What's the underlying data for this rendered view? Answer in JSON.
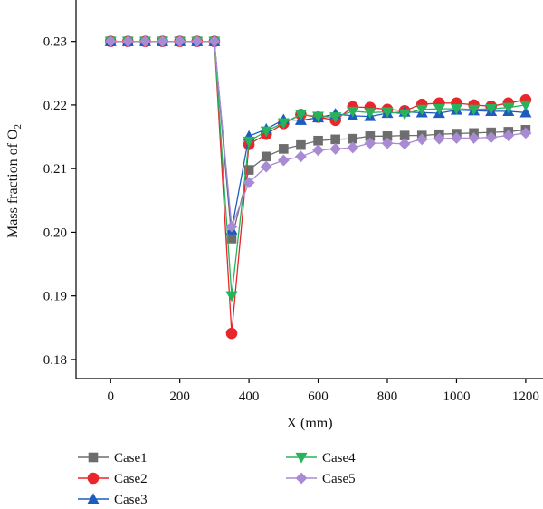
{
  "chart_data": {
    "type": "line",
    "xlabel": "X (mm)",
    "ylabel": "Mass fraction of O",
    "ylabel_subscript": "2",
    "xlim": [
      -100,
      1250
    ],
    "ylim": [
      0.177,
      0.2365
    ],
    "xticks": [
      0,
      200,
      400,
      600,
      800,
      1000,
      1200
    ],
    "yticks": [
      0.18,
      0.19,
      0.2,
      0.21,
      0.22,
      0.23
    ],
    "ytick_labels": [
      "0.18",
      "0.19",
      "0.20",
      "0.21",
      "0.22",
      "0.23"
    ],
    "grid": false,
    "legend_position": "bottom",
    "x": [
      0,
      50,
      100,
      150,
      200,
      250,
      300,
      350,
      400,
      450,
      500,
      550,
      600,
      650,
      700,
      750,
      800,
      850,
      900,
      950,
      1000,
      1050,
      1100,
      1150,
      1200
    ],
    "series": [
      {
        "name": "Case1",
        "color": "#6d6d6d",
        "marker": "square",
        "values": [
          0.23,
          0.23,
          0.23,
          0.23,
          0.23,
          0.23,
          0.23,
          0.199,
          0.2098,
          0.2119,
          0.2131,
          0.2137,
          0.2144,
          0.2146,
          0.2147,
          0.2151,
          0.2151,
          0.2152,
          0.2152,
          0.2154,
          0.2155,
          0.2156,
          0.2157,
          0.2158,
          0.2161
        ]
      },
      {
        "name": "Case2",
        "color": "#e8262b",
        "marker": "circle",
        "values": [
          0.23,
          0.23,
          0.23,
          0.23,
          0.23,
          0.23,
          0.23,
          0.1841,
          0.2138,
          0.2154,
          0.2171,
          0.2185,
          0.2181,
          0.2176,
          0.2197,
          0.2196,
          0.2193,
          0.2191,
          0.2201,
          0.2203,
          0.2203,
          0.22,
          0.2198,
          0.2203,
          0.2208
        ]
      },
      {
        "name": "Case3",
        "color": "#1e5bbf",
        "marker": "triangle-up",
        "values": [
          0.23,
          0.23,
          0.23,
          0.23,
          0.23,
          0.23,
          0.23,
          0.2004,
          0.2151,
          0.2162,
          0.2177,
          0.2176,
          0.218,
          0.2186,
          0.2183,
          0.2182,
          0.2187,
          0.2189,
          0.2188,
          0.2187,
          0.2192,
          0.2191,
          0.219,
          0.219,
          0.2188
        ]
      },
      {
        "name": "Case4",
        "color": "#27b35b",
        "marker": "triangle-down",
        "values": [
          0.23,
          0.23,
          0.23,
          0.23,
          0.23,
          0.23,
          0.23,
          0.19,
          0.2143,
          0.2159,
          0.2172,
          0.2185,
          0.2182,
          0.2181,
          0.219,
          0.2188,
          0.2189,
          0.2186,
          0.2193,
          0.2194,
          0.2194,
          0.2193,
          0.2194,
          0.2196,
          0.22
        ]
      },
      {
        "name": "Case5",
        "color": "#a98bd3",
        "marker": "diamond",
        "values": [
          0.23,
          0.23,
          0.23,
          0.23,
          0.23,
          0.23,
          0.23,
          0.2009,
          0.2078,
          0.2103,
          0.2113,
          0.2119,
          0.2129,
          0.2131,
          0.2133,
          0.214,
          0.214,
          0.2139,
          0.2146,
          0.2147,
          0.2148,
          0.2148,
          0.2149,
          0.2152,
          0.2156
        ]
      }
    ]
  }
}
